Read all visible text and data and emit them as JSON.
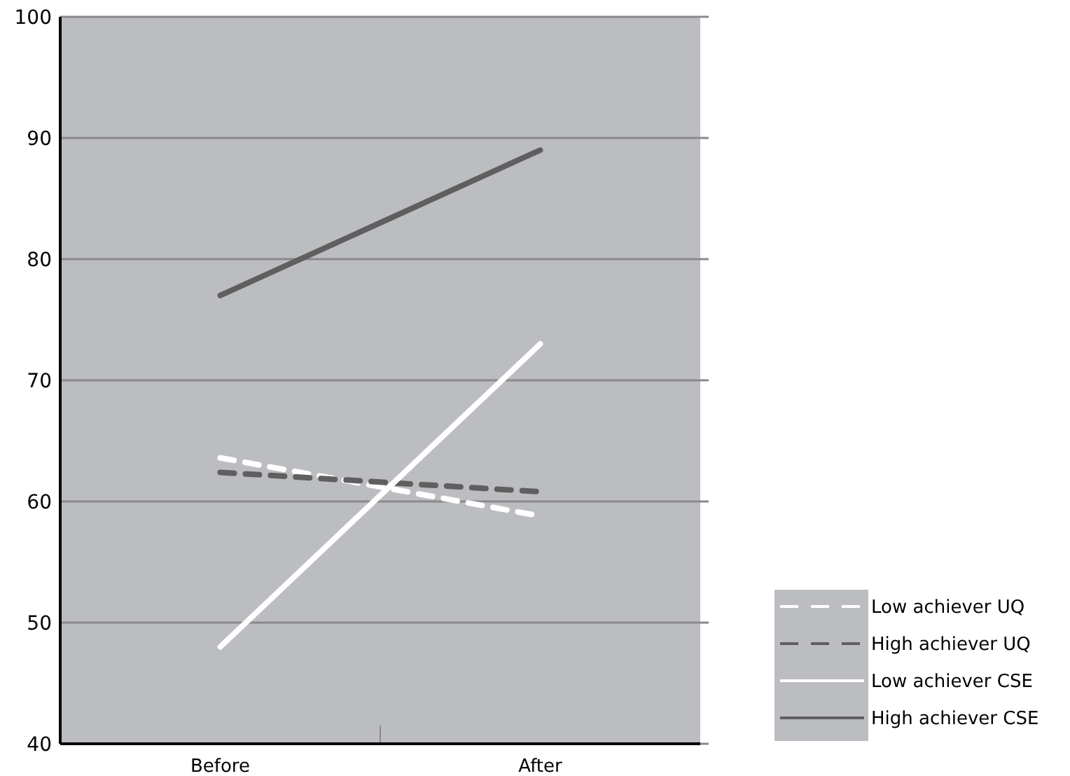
{
  "chart_data": {
    "type": "line",
    "categories": [
      "Before",
      "After"
    ],
    "ylim": [
      40,
      100
    ],
    "yticks": [
      40,
      50,
      60,
      70,
      80,
      90,
      100
    ],
    "grid": "y",
    "legend": "bottom right",
    "marker": "none",
    "series": [
      {
        "name": "Low achiever UQ",
        "color": "#ffffff",
        "line_style": "dashed",
        "values": [
          63.6,
          58.8
        ]
      },
      {
        "name": "High achiever UQ",
        "color": "#5f5f5f",
        "line_style": "dashed",
        "values": [
          62.4,
          60.8
        ]
      },
      {
        "name": "Low achiever CSE",
        "color": "#ffffff",
        "line_style": "solid",
        "values": [
          48,
          73
        ]
      },
      {
        "name": "High achiever CSE",
        "color": "#5f5f5f",
        "line_style": "solid",
        "values": [
          77,
          89
        ]
      }
    ]
  }
}
